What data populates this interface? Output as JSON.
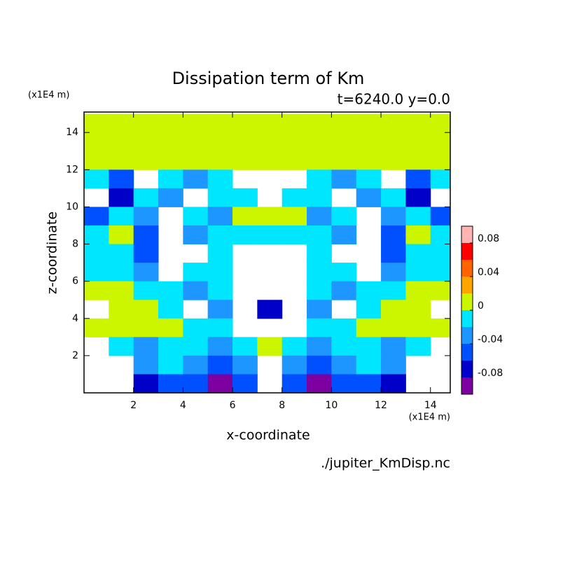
{
  "chart_data": {
    "type": "contour",
    "title": "Dissipation term of Km",
    "subtitle": "t=6240.0 y=0.0",
    "x_label": "x-coordinate",
    "y_label": "z-coordinate",
    "x_unit": "(x1E4 m)",
    "y_unit": "(x1E4 m)",
    "source": "./jupiter_KmDisp.nc",
    "xlim": [
      0,
      14.8
    ],
    "ylim": [
      0,
      15.1
    ],
    "xticks": [
      2,
      4,
      6,
      8,
      10,
      12,
      14
    ],
    "yticks": [
      2,
      4,
      6,
      8,
      10,
      12,
      14
    ],
    "levels": [
      -0.1,
      -0.08,
      -0.06,
      -0.04,
      -0.02,
      0,
      0.02,
      0.04,
      0.06,
      0.08,
      0.1
    ],
    "colors": [
      "#7d00a0",
      "#0000c8",
      "#0050ff",
      "#1e96ff",
      "#00e6ff",
      "#ccf500",
      "#ffa500",
      "#ff6400",
      "#ff0000",
      "#ffb4b4"
    ],
    "colorbar_ticks": [
      0.08,
      0.04,
      0,
      -0.04,
      -0.08
    ],
    "x": [
      0.5,
      1.5,
      2.5,
      3.5,
      4.5,
      5.5,
      6.5,
      7.5,
      8.5,
      9.5,
      10.5,
      11.5,
      12.5,
      13.5,
      14.5
    ],
    "y": [
      14.5,
      13.5,
      12.5,
      11.5,
      10.5,
      9.5,
      8.5,
      7.5,
      6.5,
      5.5,
      4.5,
      3.5,
      2.5,
      1.5,
      0.5
    ],
    "z": [
      [
        0.01,
        0.01,
        0.01,
        0.01,
        0.01,
        0.01,
        0.01,
        0.01,
        0.01,
        0.01,
        0.01,
        0.01,
        0.01,
        0.01,
        0.01
      ],
      [
        0.01,
        0.01,
        0.01,
        0.01,
        0.01,
        0.01,
        0.01,
        0.01,
        0.01,
        0.01,
        0.01,
        0.01,
        0.01,
        0.01,
        0.01
      ],
      [
        0.01,
        0.01,
        0.01,
        0.01,
        0.01,
        0.01,
        0.01,
        0.01,
        0.01,
        0.01,
        0.01,
        0.01,
        0.01,
        0.01,
        0.01
      ],
      [
        -0.01,
        -0.05,
        null,
        -0.01,
        -0.03,
        -0.01,
        null,
        null,
        null,
        -0.01,
        -0.03,
        -0.01,
        null,
        -0.05,
        -0.01
      ],
      [
        null,
        -0.07,
        -0.01,
        -0.03,
        null,
        -0.01,
        -0.01,
        null,
        -0.01,
        -0.01,
        null,
        -0.03,
        -0.01,
        -0.07,
        null
      ],
      [
        -0.05,
        -0.01,
        -0.03,
        null,
        -0.01,
        -0.03,
        0.01,
        0.01,
        0.01,
        -0.03,
        -0.01,
        null,
        -0.03,
        -0.01,
        -0.05
      ],
      [
        -0.01,
        0.01,
        -0.05,
        null,
        -0.03,
        -0.01,
        -0.01,
        -0.01,
        -0.01,
        -0.01,
        -0.03,
        null,
        -0.05,
        0.01,
        -0.01
      ],
      [
        -0.01,
        -0.01,
        -0.05,
        null,
        null,
        -0.01,
        null,
        null,
        null,
        -0.01,
        null,
        null,
        -0.05,
        -0.01,
        -0.01
      ],
      [
        -0.01,
        -0.01,
        -0.03,
        null,
        -0.01,
        -0.01,
        null,
        null,
        null,
        -0.01,
        -0.01,
        null,
        -0.03,
        -0.01,
        -0.01
      ],
      [
        0.01,
        0.01,
        -0.01,
        -0.01,
        -0.03,
        -0.01,
        null,
        null,
        null,
        -0.01,
        -0.03,
        -0.01,
        -0.01,
        0.01,
        0.01
      ],
      [
        null,
        0.01,
        0.01,
        -0.01,
        null,
        -0.03,
        null,
        -0.07,
        null,
        -0.03,
        null,
        -0.01,
        0.01,
        0.01,
        null
      ],
      [
        0.01,
        0.01,
        0.01,
        0.01,
        -0.01,
        -0.01,
        null,
        null,
        null,
        -0.01,
        -0.01,
        0.01,
        0.01,
        0.01,
        0.01
      ],
      [
        null,
        -0.01,
        -0.03,
        -0.01,
        -0.01,
        -0.03,
        -0.01,
        0.01,
        -0.01,
        -0.03,
        -0.01,
        -0.01,
        -0.03,
        -0.01,
        null
      ],
      [
        null,
        null,
        -0.03,
        -0.01,
        -0.03,
        -0.05,
        -0.03,
        null,
        -0.03,
        -0.05,
        -0.03,
        -0.01,
        -0.03,
        null,
        null
      ],
      [
        null,
        null,
        -0.07,
        -0.05,
        -0.05,
        -0.09,
        -0.05,
        null,
        -0.05,
        -0.09,
        -0.05,
        -0.05,
        -0.07,
        null,
        null
      ]
    ]
  }
}
